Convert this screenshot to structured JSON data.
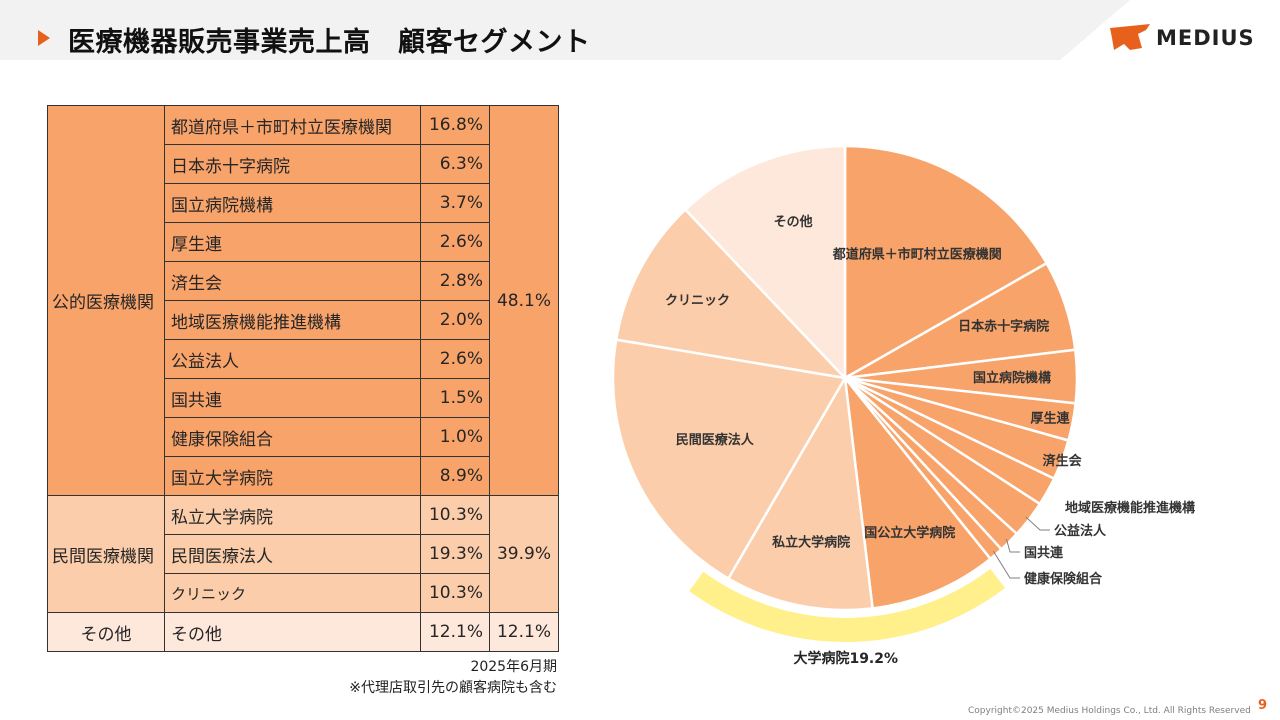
{
  "page": {
    "title": "医療機器販売事業売上高　顧客セグメント",
    "logo_text": "MEDIUS",
    "page_number": "9",
    "copyright": "Copyright©2025 Medius Holdings Co., Ltd. All Rights Reserved"
  },
  "table": {
    "groups": [
      {
        "label": "公的医療機関",
        "total": "48.1%",
        "rows": [
          {
            "name": "都道府県＋市町村立医療機関",
            "value": "16.8%"
          },
          {
            "name": "日本赤十字病院",
            "value": "6.3%"
          },
          {
            "name": "国立病院機構",
            "value": "3.7%"
          },
          {
            "name": "厚生連",
            "value": "2.6%"
          },
          {
            "name": "済生会",
            "value": "2.8%"
          },
          {
            "name": "地域医療機能推進機構",
            "value": "2.0%"
          },
          {
            "name": "公益法人",
            "value": "2.6%"
          },
          {
            "name": "国共連",
            "value": "1.5%"
          },
          {
            "name": "健康保険組合",
            "value": "1.0%"
          },
          {
            "name": "国立大学病院",
            "value": "8.9%"
          }
        ]
      },
      {
        "label": "民間医療機関",
        "total": "39.9%",
        "rows": [
          {
            "name": "私立大学病院",
            "value": "10.3%"
          },
          {
            "name": "民間医療法人",
            "value": "19.3%"
          },
          {
            "name": "クリニック",
            "value": "10.3%"
          }
        ]
      },
      {
        "label": "その他",
        "total": "12.1%",
        "rows": [
          {
            "name": "その他",
            "value": "12.1%"
          }
        ]
      }
    ],
    "note_date": "2025年6月期",
    "note_footnote": "※代理店取引先の顧客病院も含む"
  },
  "colors": {
    "accent": "#E8611C",
    "public": "#F8A36A",
    "private": "#FBCDAA",
    "other": "#FDE8DB",
    "highlight": "#FFF08C"
  },
  "chart_data": {
    "type": "pie",
    "start": "12 o'clock",
    "direction": "clockwise",
    "slices": [
      {
        "label": "都道府県＋市町村立医療機関",
        "value": 16.8,
        "color": "#F8A36A"
      },
      {
        "label": "日本赤十字病院",
        "value": 6.3,
        "color": "#F8A36A"
      },
      {
        "label": "国立病院機構",
        "value": 3.7,
        "color": "#F8A36A"
      },
      {
        "label": "厚生連",
        "value": 2.6,
        "color": "#F8A36A"
      },
      {
        "label": "済生会",
        "value": 2.8,
        "color": "#F8A36A"
      },
      {
        "label": "地域医療機能推進機構",
        "value": 2.0,
        "color": "#F8A36A"
      },
      {
        "label": "公益法人",
        "value": 2.6,
        "color": "#F8A36A"
      },
      {
        "label": "国共連",
        "value": 1.5,
        "color": "#F8A36A"
      },
      {
        "label": "健康保険組合",
        "value": 1.0,
        "color": "#F8A36A"
      },
      {
        "label": "国公立大学病院",
        "value": 8.9,
        "color": "#F8A36A"
      },
      {
        "label": "私立大学病院",
        "value": 10.3,
        "color": "#FBCDAA"
      },
      {
        "label": "民間医療法人",
        "value": 19.3,
        "color": "#FBCDAA"
      },
      {
        "label": "クリニック",
        "value": 10.3,
        "color": "#FBCDAA"
      },
      {
        "label": "その他",
        "value": 12.1,
        "color": "#FDE8DB"
      }
    ],
    "highlight": {
      "label": "大学病院19.2%",
      "covers": [
        "国公立大学病院",
        "私立大学病院"
      ],
      "color": "#FFF08C"
    }
  }
}
